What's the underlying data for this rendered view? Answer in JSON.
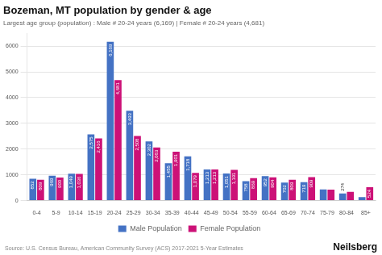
{
  "chart_data": {
    "type": "bar",
    "title": "Bozeman, MT population by gender & age",
    "subtitle": "Largest age group (population) : Male # 20-24 years (6,169) | Female # 20-24 years (4,681)",
    "categories": [
      "0-4",
      "5-9",
      "10-14",
      "15-19",
      "20-24",
      "25-29",
      "30-34",
      "35-39",
      "40-44",
      "45-49",
      "50-54",
      "55-59",
      "60-64",
      "65-69",
      "70-74",
      "75-79",
      "80-84",
      "85+"
    ],
    "series": [
      {
        "name": "Male Population",
        "color": "#4472C4",
        "values": [
          852,
          969,
          1049,
          2575,
          6169,
          3493,
          2302,
          1455,
          1718,
          1213,
          1051,
          758,
          952,
          702,
          719,
          436,
          274,
          133
        ],
        "value_labels": [
          "852",
          "969",
          "1,049",
          "2,575",
          "6,169",
          "3,493",
          "2,302",
          "1,455",
          "1,718",
          "1,213",
          "1,051",
          "758",
          "952",
          "702",
          "719",
          null,
          "274",
          null
        ]
      },
      {
        "name": "Female Population",
        "color": "#CC1177",
        "values": [
          809,
          900,
          1036,
          2416,
          4681,
          2508,
          2063,
          1901,
          1079,
          1213,
          1191,
          869,
          904,
          809,
          909,
          424,
          343,
          524
        ],
        "value_labels": [
          "809",
          "900",
          "1,036",
          "2,416",
          "4,681",
          "2,508",
          "2,063",
          "1,901",
          "1,079",
          "1,213",
          "1,191",
          "869",
          "904",
          "809",
          "909",
          null,
          null,
          "524"
        ]
      }
    ],
    "ylim": [
      0,
      6500
    ],
    "yticks": [
      0,
      1000,
      2000,
      3000,
      4000,
      5000,
      6000
    ],
    "grid": true,
    "legend": "bottom",
    "data_labels": true,
    "annotations": [
      "Source: U.S. Census Bureau, American Community Survey (ACS) 2017-2021 5-Year Estimates",
      "Neilsberg"
    ]
  }
}
